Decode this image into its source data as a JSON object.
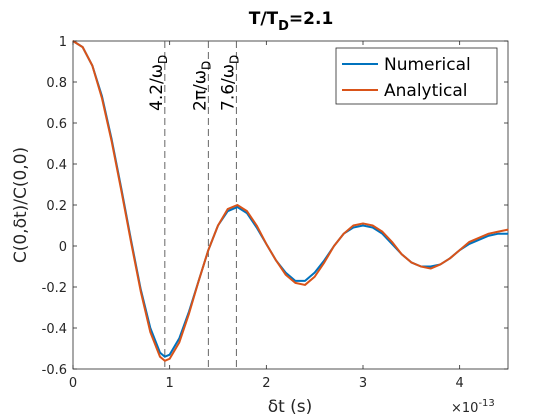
{
  "chart_data": {
    "type": "line",
    "title_main": "T/T",
    "title_sub": "D",
    "title_tail": "=2.1",
    "xlabel": "δt (s)",
    "ylabel": "C(0,δt)/C(0,0)",
    "x_exponent_base": "×10",
    "x_exponent_power": "-13",
    "xlim": [
      0,
      4.5
    ],
    "ylim": [
      -0.6,
      1
    ],
    "xticks": [
      0,
      1,
      2,
      3,
      4
    ],
    "xtick_labels": [
      "0",
      "1",
      "2",
      "3",
      "4"
    ],
    "yticks": [
      -0.6,
      -0.4,
      -0.2,
      0,
      0.2,
      0.4,
      0.6,
      0.8,
      1
    ],
    "ytick_labels": [
      "-0.6",
      "-0.4",
      "-0.2",
      "0",
      "0.2",
      "0.4",
      "0.6",
      "0.8",
      "1"
    ],
    "grid": false,
    "legend_position": "top-right",
    "series": [
      {
        "name": "Numerical",
        "color": "#0072BD",
        "x": [
          0,
          0.1,
          0.2,
          0.3,
          0.4,
          0.5,
          0.6,
          0.7,
          0.8,
          0.9,
          0.95,
          1.0,
          1.1,
          1.2,
          1.3,
          1.4,
          1.5,
          1.6,
          1.7,
          1.8,
          1.9,
          2.0,
          2.1,
          2.2,
          2.3,
          2.4,
          2.5,
          2.6,
          2.7,
          2.8,
          2.9,
          3.0,
          3.1,
          3.2,
          3.3,
          3.4,
          3.5,
          3.6,
          3.7,
          3.8,
          3.9,
          4.0,
          4.1,
          4.2,
          4.3,
          4.4,
          4.5
        ],
        "values": [
          1.0,
          0.97,
          0.88,
          0.73,
          0.52,
          0.28,
          0.03,
          -0.21,
          -0.4,
          -0.52,
          -0.54,
          -0.53,
          -0.45,
          -0.32,
          -0.17,
          -0.02,
          0.1,
          0.17,
          0.19,
          0.16,
          0.09,
          0.01,
          -0.07,
          -0.13,
          -0.17,
          -0.17,
          -0.13,
          -0.07,
          0.0,
          0.06,
          0.09,
          0.1,
          0.09,
          0.06,
          0.01,
          -0.04,
          -0.08,
          -0.1,
          -0.1,
          -0.09,
          -0.06,
          -0.02,
          0.01,
          0.03,
          0.05,
          0.06,
          0.06
        ]
      },
      {
        "name": "Analytical",
        "color": "#D95319",
        "x": [
          0,
          0.1,
          0.2,
          0.3,
          0.4,
          0.5,
          0.6,
          0.7,
          0.8,
          0.9,
          0.95,
          1.0,
          1.1,
          1.2,
          1.3,
          1.4,
          1.5,
          1.6,
          1.7,
          1.8,
          1.9,
          2.0,
          2.1,
          2.2,
          2.3,
          2.4,
          2.5,
          2.6,
          2.7,
          2.8,
          2.9,
          3.0,
          3.1,
          3.2,
          3.3,
          3.4,
          3.5,
          3.6,
          3.7,
          3.8,
          3.9,
          4.0,
          4.1,
          4.2,
          4.3,
          4.4,
          4.5
        ],
        "values": [
          1.0,
          0.97,
          0.88,
          0.72,
          0.51,
          0.27,
          0.02,
          -0.22,
          -0.42,
          -0.54,
          -0.56,
          -0.55,
          -0.47,
          -0.33,
          -0.17,
          -0.02,
          0.1,
          0.18,
          0.2,
          0.17,
          0.1,
          0.01,
          -0.07,
          -0.14,
          -0.18,
          -0.19,
          -0.15,
          -0.08,
          0.0,
          0.06,
          0.1,
          0.11,
          0.1,
          0.07,
          0.02,
          -0.04,
          -0.08,
          -0.1,
          -0.11,
          -0.09,
          -0.06,
          -0.02,
          0.02,
          0.04,
          0.06,
          0.07,
          0.08
        ]
      }
    ],
    "annotations": [
      {
        "x": 0.95,
        "label": "4.2/ω",
        "sub": "D"
      },
      {
        "x": 1.4,
        "label": "2π/ω",
        "sub": "D"
      },
      {
        "x": 1.69,
        "label": "7.6/ω",
        "sub": "D"
      }
    ]
  }
}
